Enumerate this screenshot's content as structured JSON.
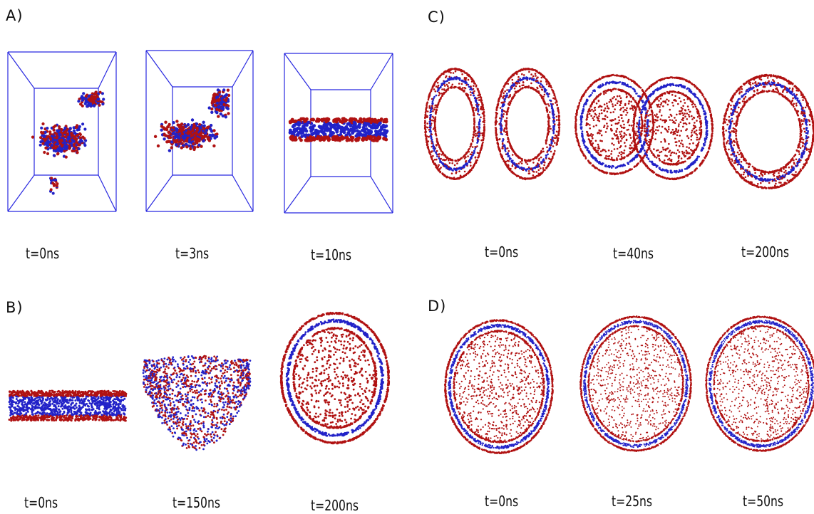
{
  "colors": {
    "head_bead": "#b01212",
    "tail_bead": "#2222c8",
    "box_edge": "#2828e0",
    "background": "#ffffff"
  },
  "panels": [
    {
      "label": "A)",
      "description_key": "self-assembly-in-box",
      "times": [
        "t=0ns",
        "t=3ns",
        "t=10ns"
      ]
    },
    {
      "label": "B)",
      "description_key": "bilayer-closure",
      "times": [
        "t=0ns",
        "t=150ns",
        "t=200ns"
      ]
    },
    {
      "label": "C)",
      "description_key": "vesicle-fusion",
      "times": [
        "t=0ns",
        "t=40ns",
        "t=200ns"
      ]
    },
    {
      "label": "D)",
      "description_key": "large-vesicle",
      "times": [
        "t=0ns",
        "t=25ns",
        "t=50ns"
      ]
    }
  ]
}
